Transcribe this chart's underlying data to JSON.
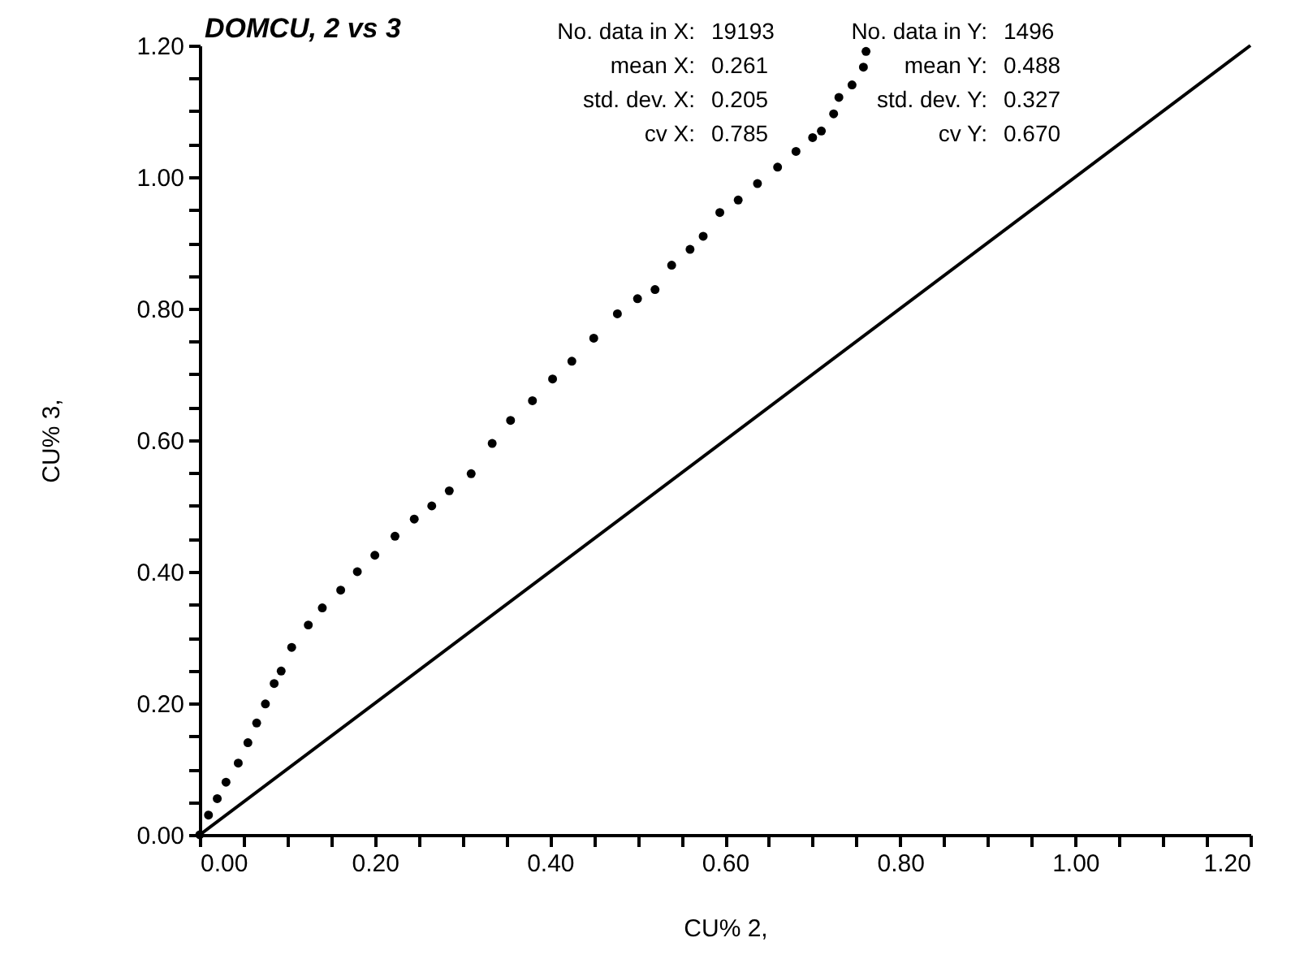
{
  "chart_data": {
    "type": "scatter",
    "title": "DOMCU, 2 vs 3",
    "xlabel": "CU% 2,",
    "ylabel": "CU% 3,",
    "annotations": [
      "No. data in X: 19193",
      "mean X: 0.261",
      "std. dev. X: 0.205",
      "cv X: 0.785",
      "No. data in Y: 1496",
      "mean Y: 0.488",
      "std. dev. Y: 0.327",
      "cv Y: 0.670"
    ],
    "series": [
      {
        "type": "scatter",
        "color": "#000000",
        "marker": "circle",
        "x": [
          0.0,
          0.01,
          0.02,
          0.03,
          0.044,
          0.055,
          0.065,
          0.075,
          0.085,
          0.093,
          0.105,
          0.124,
          0.14,
          0.161,
          0.18,
          0.2,
          0.223,
          0.245,
          0.265,
          0.285,
          0.31,
          0.334,
          0.355,
          0.38,
          0.403,
          0.425,
          0.45,
          0.477,
          0.5,
          0.52,
          0.539,
          0.56,
          0.575,
          0.594,
          0.615,
          0.637,
          0.66,
          0.681,
          0.7,
          0.71,
          0.724,
          0.73,
          0.745,
          0.758,
          0.761
        ],
        "values": [
          0.0,
          0.03,
          0.055,
          0.08,
          0.109,
          0.14,
          0.17,
          0.199,
          0.23,
          0.249,
          0.285,
          0.319,
          0.345,
          0.372,
          0.4,
          0.425,
          0.454,
          0.48,
          0.5,
          0.523,
          0.549,
          0.595,
          0.63,
          0.66,
          0.693,
          0.72,
          0.755,
          0.792,
          0.815,
          0.829,
          0.866,
          0.89,
          0.91,
          0.946,
          0.965,
          0.99,
          1.015,
          1.039,
          1.06,
          1.07,
          1.096,
          1.121,
          1.14,
          1.167,
          1.191
        ]
      },
      {
        "type": "line",
        "color": "#000000",
        "line_style": "solid",
        "x": [
          0.0,
          1.2
        ],
        "values": [
          0.0,
          1.2
        ]
      }
    ],
    "xlim": [
      0,
      1.2
    ],
    "ylim": [
      0,
      1.2
    ],
    "xticks": [
      {
        "value": 0.0,
        "label": "0.00"
      },
      {
        "value": 0.05,
        "label": null
      },
      {
        "value": 0.1,
        "label": null
      },
      {
        "value": 0.15,
        "label": null
      },
      {
        "value": 0.2,
        "label": "0.20"
      },
      {
        "value": 0.25,
        "label": null
      },
      {
        "value": 0.3,
        "label": null
      },
      {
        "value": 0.35,
        "label": null
      },
      {
        "value": 0.4,
        "label": "0.40"
      },
      {
        "value": 0.45,
        "label": null
      },
      {
        "value": 0.5,
        "label": null
      },
      {
        "value": 0.55,
        "label": null
      },
      {
        "value": 0.6,
        "label": "0.60"
      },
      {
        "value": 0.65,
        "label": null
      },
      {
        "value": 0.7,
        "label": null
      },
      {
        "value": 0.75,
        "label": null
      },
      {
        "value": 0.8,
        "label": "0.80"
      },
      {
        "value": 0.85,
        "label": null
      },
      {
        "value": 0.9,
        "label": null
      },
      {
        "value": 0.95,
        "label": null
      },
      {
        "value": 1.0,
        "label": "1.00"
      },
      {
        "value": 1.05,
        "label": null
      },
      {
        "value": 1.1,
        "label": null
      },
      {
        "value": 1.15,
        "label": null
      },
      {
        "value": 1.2,
        "label": "1.20"
      }
    ],
    "yticks": [
      {
        "value": 0.0,
        "label": "0.00"
      },
      {
        "value": 0.05,
        "label": null
      },
      {
        "value": 0.1,
        "label": null
      },
      {
        "value": 0.15,
        "label": null
      },
      {
        "value": 0.2,
        "label": "0.20"
      },
      {
        "value": 0.25,
        "label": null
      },
      {
        "value": 0.3,
        "label": null
      },
      {
        "value": 0.35,
        "label": null
      },
      {
        "value": 0.4,
        "label": "0.40"
      },
      {
        "value": 0.45,
        "label": null
      },
      {
        "value": 0.5,
        "label": null
      },
      {
        "value": 0.55,
        "label": null
      },
      {
        "value": 0.6,
        "label": "0.60"
      },
      {
        "value": 0.65,
        "label": null
      },
      {
        "value": 0.7,
        "label": null
      },
      {
        "value": 0.75,
        "label": null
      },
      {
        "value": 0.8,
        "label": "0.80"
      },
      {
        "value": 0.85,
        "label": null
      },
      {
        "value": 0.9,
        "label": null
      },
      {
        "value": 0.95,
        "label": null
      },
      {
        "value": 1.0,
        "label": "1.00"
      },
      {
        "value": 1.05,
        "label": null
      },
      {
        "value": 1.1,
        "label": null
      },
      {
        "value": 1.15,
        "label": null
      },
      {
        "value": 1.2,
        "label": "1.20"
      }
    ],
    "grid": false
  }
}
